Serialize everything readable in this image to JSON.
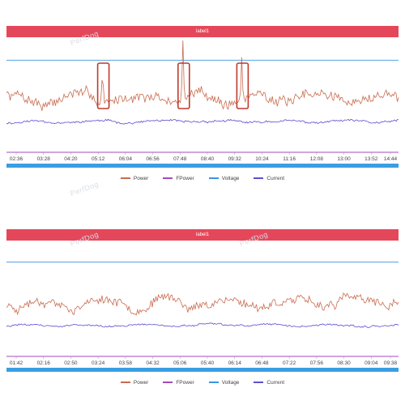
{
  "colors": {
    "label_bar": "#e5475a",
    "power": "#c96b4f",
    "fpower": "#a14bc0",
    "voltage": "#3b95e2",
    "current": "#5b4fd0",
    "highlight": "#c0392b",
    "axis_bar": "#3a9ee4"
  },
  "watermark": "PerfDog",
  "legend": [
    {
      "name": "Power",
      "color": "#c96b4f"
    },
    {
      "name": "FPower",
      "color": "#a14bc0"
    },
    {
      "name": "Voltage",
      "color": "#3b95e2"
    },
    {
      "name": "Current",
      "color": "#5b4fd0"
    }
  ],
  "chart_data": [
    {
      "type": "line",
      "title": "label1",
      "x_ticks": [
        "02:36",
        "03:28",
        "04:20",
        "05:12",
        "06:04",
        "06:56",
        "07:48",
        "08:40",
        "09:32",
        "10:24",
        "11:16",
        "12:08",
        "13:00",
        "13:52",
        "14:44"
      ],
      "series": [
        {
          "name": "Power",
          "pattern": "noisy",
          "baseline": 0.36,
          "amplitude": 0.14,
          "seed": 7,
          "spikes": [
            {
              "at": 0.245,
              "h": 0.38
            },
            {
              "at": 0.45,
              "h": 0.62
            },
            {
              "at": 0.6,
              "h": 0.42
            }
          ]
        },
        {
          "name": "FPower",
          "pattern": "flat",
          "level": 0.0
        },
        {
          "name": "Voltage",
          "pattern": "flat",
          "level": 0.82
        },
        {
          "name": "Current",
          "pattern": "noisy",
          "baseline": 0.115,
          "amplitude": 0.03,
          "seed": 11,
          "spikes": []
        }
      ],
      "highlighted_spikes": [
        {
          "x": 0.245,
          "label": ""
        },
        {
          "x": 0.45,
          "label": ""
        },
        {
          "x": 0.6,
          "label": ""
        }
      ],
      "grid": false,
      "legend_position": "bottom"
    },
    {
      "type": "line",
      "title": "label1",
      "x_ticks": [
        "01:42",
        "02:16",
        "02:50",
        "03:24",
        "03:58",
        "04:32",
        "05:06",
        "05:40",
        "06:14",
        "06:48",
        "07:22",
        "07:56",
        "08:30",
        "09:04",
        "09:38"
      ],
      "series": [
        {
          "name": "Power",
          "pattern": "noisy",
          "baseline": 0.36,
          "amplitude": 0.12,
          "seed": 23,
          "spikes": []
        },
        {
          "name": "FPower",
          "pattern": "flat",
          "level": 0.0
        },
        {
          "name": "Voltage",
          "pattern": "flat",
          "level": 0.84
        },
        {
          "name": "Current",
          "pattern": "noisy",
          "baseline": 0.12,
          "amplitude": 0.025,
          "seed": 31,
          "spikes": []
        }
      ],
      "highlighted_spikes": [],
      "grid": false,
      "legend_position": "bottom"
    }
  ]
}
